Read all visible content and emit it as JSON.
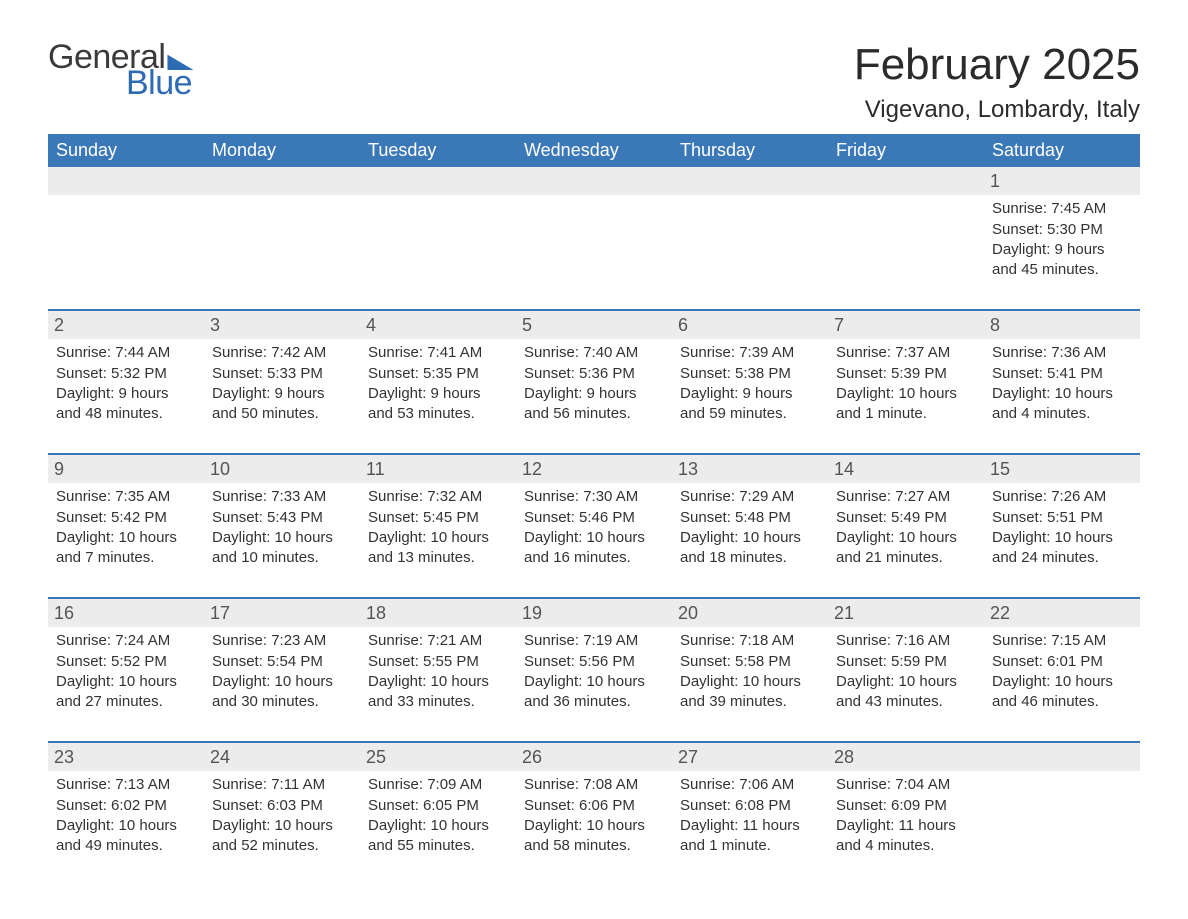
{
  "logo": {
    "general": "General",
    "blue": "Blue"
  },
  "title": "February 2025",
  "subtitle": "Vigevano, Lombardy, Italy",
  "colors": {
    "header_bg": "#3a78b8",
    "header_text": "#ffffff",
    "daynum_bg": "#ececec",
    "daynum_text": "#555555",
    "body_text": "#333333",
    "logo_grey": "#3a3a3a",
    "logo_blue": "#2d6bb3",
    "week_divider": "#3a78b8",
    "page_bg": "#ffffff"
  },
  "fonts": {
    "title_size_pt": 33,
    "subtitle_size_pt": 18,
    "weekday_size_pt": 14,
    "daynum_size_pt": 14,
    "body_size_pt": 11,
    "family": "Arial, Helvetica, sans-serif"
  },
  "weekdays": [
    "Sunday",
    "Monday",
    "Tuesday",
    "Wednesday",
    "Thursday",
    "Friday",
    "Saturday"
  ],
  "weeks": [
    [
      {
        "n": "",
        "lines": []
      },
      {
        "n": "",
        "lines": []
      },
      {
        "n": "",
        "lines": []
      },
      {
        "n": "",
        "lines": []
      },
      {
        "n": "",
        "lines": []
      },
      {
        "n": "",
        "lines": []
      },
      {
        "n": "1",
        "lines": [
          "Sunrise: 7:45 AM",
          "Sunset: 5:30 PM",
          "Daylight: 9 hours and 45 minutes."
        ]
      }
    ],
    [
      {
        "n": "2",
        "lines": [
          "Sunrise: 7:44 AM",
          "Sunset: 5:32 PM",
          "Daylight: 9 hours and 48 minutes."
        ]
      },
      {
        "n": "3",
        "lines": [
          "Sunrise: 7:42 AM",
          "Sunset: 5:33 PM",
          "Daylight: 9 hours and 50 minutes."
        ]
      },
      {
        "n": "4",
        "lines": [
          "Sunrise: 7:41 AM",
          "Sunset: 5:35 PM",
          "Daylight: 9 hours and 53 minutes."
        ]
      },
      {
        "n": "5",
        "lines": [
          "Sunrise: 7:40 AM",
          "Sunset: 5:36 PM",
          "Daylight: 9 hours and 56 minutes."
        ]
      },
      {
        "n": "6",
        "lines": [
          "Sunrise: 7:39 AM",
          "Sunset: 5:38 PM",
          "Daylight: 9 hours and 59 minutes."
        ]
      },
      {
        "n": "7",
        "lines": [
          "Sunrise: 7:37 AM",
          "Sunset: 5:39 PM",
          "Daylight: 10 hours and 1 minute."
        ]
      },
      {
        "n": "8",
        "lines": [
          "Sunrise: 7:36 AM",
          "Sunset: 5:41 PM",
          "Daylight: 10 hours and 4 minutes."
        ]
      }
    ],
    [
      {
        "n": "9",
        "lines": [
          "Sunrise: 7:35 AM",
          "Sunset: 5:42 PM",
          "Daylight: 10 hours and 7 minutes."
        ]
      },
      {
        "n": "10",
        "lines": [
          "Sunrise: 7:33 AM",
          "Sunset: 5:43 PM",
          "Daylight: 10 hours and 10 minutes."
        ]
      },
      {
        "n": "11",
        "lines": [
          "Sunrise: 7:32 AM",
          "Sunset: 5:45 PM",
          "Daylight: 10 hours and 13 minutes."
        ]
      },
      {
        "n": "12",
        "lines": [
          "Sunrise: 7:30 AM",
          "Sunset: 5:46 PM",
          "Daylight: 10 hours and 16 minutes."
        ]
      },
      {
        "n": "13",
        "lines": [
          "Sunrise: 7:29 AM",
          "Sunset: 5:48 PM",
          "Daylight: 10 hours and 18 minutes."
        ]
      },
      {
        "n": "14",
        "lines": [
          "Sunrise: 7:27 AM",
          "Sunset: 5:49 PM",
          "Daylight: 10 hours and 21 minutes."
        ]
      },
      {
        "n": "15",
        "lines": [
          "Sunrise: 7:26 AM",
          "Sunset: 5:51 PM",
          "Daylight: 10 hours and 24 minutes."
        ]
      }
    ],
    [
      {
        "n": "16",
        "lines": [
          "Sunrise: 7:24 AM",
          "Sunset: 5:52 PM",
          "Daylight: 10 hours and 27 minutes."
        ]
      },
      {
        "n": "17",
        "lines": [
          "Sunrise: 7:23 AM",
          "Sunset: 5:54 PM",
          "Daylight: 10 hours and 30 minutes."
        ]
      },
      {
        "n": "18",
        "lines": [
          "Sunrise: 7:21 AM",
          "Sunset: 5:55 PM",
          "Daylight: 10 hours and 33 minutes."
        ]
      },
      {
        "n": "19",
        "lines": [
          "Sunrise: 7:19 AM",
          "Sunset: 5:56 PM",
          "Daylight: 10 hours and 36 minutes."
        ]
      },
      {
        "n": "20",
        "lines": [
          "Sunrise: 7:18 AM",
          "Sunset: 5:58 PM",
          "Daylight: 10 hours and 39 minutes."
        ]
      },
      {
        "n": "21",
        "lines": [
          "Sunrise: 7:16 AM",
          "Sunset: 5:59 PM",
          "Daylight: 10 hours and 43 minutes."
        ]
      },
      {
        "n": "22",
        "lines": [
          "Sunrise: 7:15 AM",
          "Sunset: 6:01 PM",
          "Daylight: 10 hours and 46 minutes."
        ]
      }
    ],
    [
      {
        "n": "23",
        "lines": [
          "Sunrise: 7:13 AM",
          "Sunset: 6:02 PM",
          "Daylight: 10 hours and 49 minutes."
        ]
      },
      {
        "n": "24",
        "lines": [
          "Sunrise: 7:11 AM",
          "Sunset: 6:03 PM",
          "Daylight: 10 hours and 52 minutes."
        ]
      },
      {
        "n": "25",
        "lines": [
          "Sunrise: 7:09 AM",
          "Sunset: 6:05 PM",
          "Daylight: 10 hours and 55 minutes."
        ]
      },
      {
        "n": "26",
        "lines": [
          "Sunrise: 7:08 AM",
          "Sunset: 6:06 PM",
          "Daylight: 10 hours and 58 minutes."
        ]
      },
      {
        "n": "27",
        "lines": [
          "Sunrise: 7:06 AM",
          "Sunset: 6:08 PM",
          "Daylight: 11 hours and 1 minute."
        ]
      },
      {
        "n": "28",
        "lines": [
          "Sunrise: 7:04 AM",
          "Sunset: 6:09 PM",
          "Daylight: 11 hours and 4 minutes."
        ]
      },
      {
        "n": "",
        "lines": []
      }
    ]
  ]
}
